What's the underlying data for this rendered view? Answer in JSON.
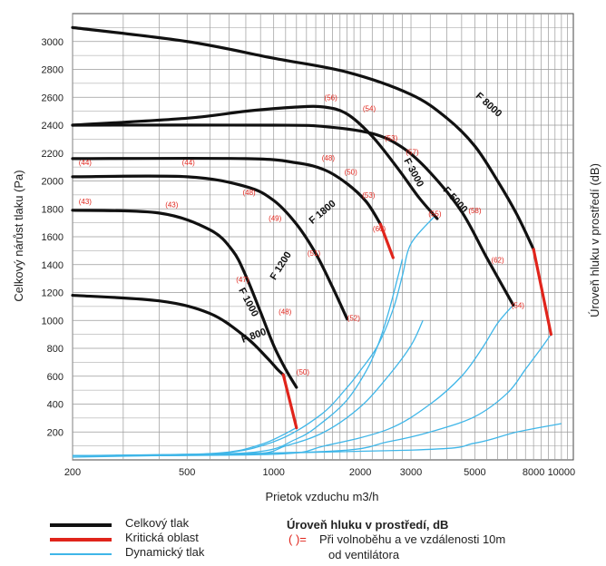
{
  "chart_data": {
    "type": "line",
    "xlabel": "Prietok vzduchu m3/h",
    "ylabel": "Celkový nárůst tlaku (Pa)",
    "ylabel_right": "Úroveň hluku v prostředí (dB)",
    "x_scale": "log",
    "xlim": [
      200,
      11000
    ],
    "ylim": [
      0,
      3200
    ],
    "grid": true,
    "x_ticks": [
      200,
      500,
      1000,
      2000,
      3000,
      5000,
      8000,
      10000
    ],
    "x_tick_labels": [
      "200",
      "500",
      "1000",
      "2000",
      "3000",
      "5000",
      "8000",
      "10000"
    ],
    "y_ticks": [
      200,
      400,
      600,
      800,
      1000,
      1200,
      1400,
      1600,
      1800,
      2000,
      2200,
      2400,
      2600,
      2800,
      3000
    ],
    "series": [
      {
        "name": "F 800",
        "label_at": [
          860,
          820
        ],
        "points": [
          [
            200,
            1180
          ],
          [
            400,
            1140
          ],
          [
            600,
            1050
          ],
          [
            800,
            880
          ],
          [
            950,
            730
          ],
          [
            1030,
            650
          ],
          [
            1080,
            610
          ]
        ],
        "critical": [
          [
            1080,
            610
          ],
          [
            1200,
            230
          ]
        ]
      },
      {
        "name": "F 1000",
        "points": [
          [
            200,
            1790
          ],
          [
            400,
            1770
          ],
          [
            600,
            1650
          ],
          [
            720,
            1500
          ],
          [
            800,
            1320
          ],
          [
            900,
            1060
          ],
          [
            1000,
            820
          ],
          [
            1100,
            650
          ],
          [
            1200,
            520
          ]
        ]
      },
      {
        "name": "F 1200",
        "points": [
          [
            200,
            2030
          ],
          [
            500,
            2030
          ],
          [
            800,
            1960
          ],
          [
            1000,
            1860
          ],
          [
            1200,
            1690
          ],
          [
            1400,
            1480
          ],
          [
            1600,
            1240
          ],
          [
            1800,
            1010
          ]
        ]
      },
      {
        "name": "F 1800",
        "points": [
          [
            200,
            2160
          ],
          [
            800,
            2160
          ],
          [
            1200,
            2130
          ],
          [
            1500,
            2080
          ],
          [
            1800,
            1980
          ],
          [
            2100,
            1850
          ],
          [
            2350,
            1690
          ]
        ],
        "critical": [
          [
            2350,
            1690
          ],
          [
            2600,
            1450
          ]
        ]
      },
      {
        "name": "F 3000",
        "points": [
          [
            200,
            2400
          ],
          [
            500,
            2450
          ],
          [
            800,
            2500
          ],
          [
            1200,
            2530
          ],
          [
            1500,
            2530
          ],
          [
            1800,
            2480
          ],
          [
            2200,
            2320
          ],
          [
            2700,
            2090
          ],
          [
            3200,
            1880
          ],
          [
            3700,
            1730
          ]
        ]
      },
      {
        "name": "F 5000",
        "points": [
          [
            200,
            2400
          ],
          [
            1000,
            2400
          ],
          [
            1500,
            2390
          ],
          [
            2200,
            2340
          ],
          [
            2800,
            2240
          ],
          [
            3500,
            2060
          ],
          [
            4500,
            1780
          ],
          [
            5500,
            1450
          ],
          [
            6800,
            1110
          ]
        ]
      },
      {
        "name": "F 8000",
        "points": [
          [
            200,
            3100
          ],
          [
            500,
            3000
          ],
          [
            1000,
            2880
          ],
          [
            1800,
            2780
          ],
          [
            3000,
            2620
          ],
          [
            4000,
            2450
          ],
          [
            5000,
            2250
          ],
          [
            6000,
            2000
          ],
          [
            7000,
            1760
          ],
          [
            8000,
            1510
          ]
        ],
        "critical": [
          [
            8000,
            1510
          ],
          [
            9200,
            900
          ]
        ]
      }
    ],
    "dynamic_curves": [
      [
        [
          200,
          30
        ],
        [
          600,
          45
        ],
        [
          900,
          110
        ],
        [
          1200,
          230
        ]
      ],
      [
        [
          200,
          30
        ],
        [
          600,
          40
        ],
        [
          1000,
          130
        ],
        [
          1450,
          320
        ],
        [
          1800,
          520
        ],
        [
          2000,
          640
        ],
        [
          2300,
          820
        ],
        [
          2600,
          1080
        ],
        [
          2800,
          1320
        ],
        [
          3000,
          1550
        ],
        [
          3600,
          1740
        ]
      ],
      [
        [
          200,
          30
        ],
        [
          800,
          50
        ],
        [
          1200,
          150
        ],
        [
          1500,
          280
        ],
        [
          1800,
          430
        ],
        [
          2100,
          640
        ],
        [
          2300,
          820
        ],
        [
          2500,
          1050
        ],
        [
          2700,
          1310
        ],
        [
          2800,
          1440
        ]
      ],
      [
        [
          200,
          30
        ],
        [
          800,
          40
        ],
        [
          1100,
          100
        ],
        [
          1500,
          200
        ],
        [
          2000,
          380
        ],
        [
          2500,
          600
        ],
        [
          3000,
          820
        ],
        [
          3300,
          1000
        ]
      ],
      [
        [
          200,
          30
        ],
        [
          1000,
          40
        ],
        [
          1500,
          100
        ],
        [
          2500,
          220
        ],
        [
          3500,
          400
        ],
        [
          4500,
          600
        ],
        [
          5300,
          800
        ],
        [
          6000,
          980
        ],
        [
          6800,
          1110
        ]
      ],
      [
        [
          200,
          30
        ],
        [
          1500,
          60
        ],
        [
          2500,
          130
        ],
        [
          3500,
          200
        ],
        [
          5000,
          310
        ],
        [
          6500,
          480
        ],
        [
          7500,
          650
        ],
        [
          8500,
          800
        ],
        [
          9200,
          900
        ]
      ],
      [
        [
          200,
          20
        ],
        [
          3000,
          70
        ],
        [
          5000,
          120
        ],
        [
          7000,
          200
        ],
        [
          10000,
          260
        ]
      ]
    ],
    "noise_labels": [
      {
        "text": "(44)",
        "x": 210,
        "y": 2115
      },
      {
        "text": "(44)",
        "x": 480,
        "y": 2115
      },
      {
        "text": "(43)",
        "x": 210,
        "y": 1835
      },
      {
        "text": "(43)",
        "x": 420,
        "y": 1810
      },
      {
        "text": "(48)",
        "x": 780,
        "y": 1900
      },
      {
        "text": "(49)",
        "x": 960,
        "y": 1715
      },
      {
        "text": "(47)",
        "x": 740,
        "y": 1275
      },
      {
        "text": "(48)",
        "x": 1040,
        "y": 1045
      },
      {
        "text": "(51)",
        "x": 1310,
        "y": 1465
      },
      {
        "text": "(50)",
        "x": 1200,
        "y": 610
      },
      {
        "text": "(52)",
        "x": 1800,
        "y": 1000
      },
      {
        "text": "(48)",
        "x": 1470,
        "y": 2145
      },
      {
        "text": "(50)",
        "x": 1760,
        "y": 2045
      },
      {
        "text": "(53)",
        "x": 2030,
        "y": 1880
      },
      {
        "text": "(60)",
        "x": 2210,
        "y": 1640
      },
      {
        "text": "(56)",
        "x": 1500,
        "y": 2580
      },
      {
        "text": "(54)",
        "x": 2040,
        "y": 2500
      },
      {
        "text": "(53)",
        "x": 2430,
        "y": 2290
      },
      {
        "text": "(57)",
        "x": 2880,
        "y": 2190
      },
      {
        "text": "(55)",
        "x": 3450,
        "y": 1745
      },
      {
        "text": "(58)",
        "x": 4750,
        "y": 1770
      },
      {
        "text": "(62)",
        "x": 5700,
        "y": 1415
      },
      {
        "text": "(54)",
        "x": 6700,
        "y": 1090
      }
    ]
  },
  "legend": {
    "items": [
      {
        "label": "Celkový tlak",
        "color": "#111111"
      },
      {
        "label": "Kritická oblast",
        "color": "#e0241b"
      },
      {
        "label": "Dynamický tlak",
        "color": "#3fb6e8"
      }
    ],
    "noise_title": "Úroveň hluku v prostředí, dB",
    "noise_symbol": "( )=",
    "noise_desc_1": "Při volnoběhu a ve vzdálenosti 10m",
    "noise_desc_2": "od ventilátora"
  },
  "colors": {
    "total": "#111111",
    "critical": "#e0241b",
    "dynamic": "#3fb6e8",
    "grid": "#9a9a9a",
    "noise": "#e0241b"
  }
}
